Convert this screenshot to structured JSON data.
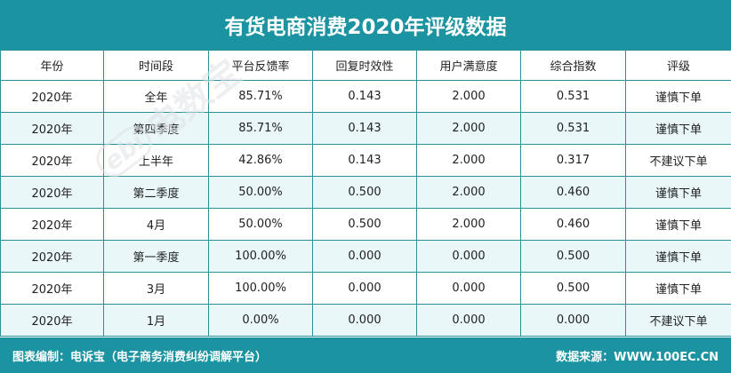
{
  "title": "有货电商消费2020年评级数据",
  "columns": [
    "年份",
    "时间段",
    "平台反馈率",
    "回复时效性",
    "用户满意度",
    "综合指数",
    "评级"
  ],
  "rows": [
    [
      "2020年",
      "全年",
      "85.71%",
      "0.143",
      "2.000",
      "0.531",
      "谨慎下单"
    ],
    [
      "2020年",
      "第四季度",
      "85.71%",
      "0.143",
      "2.000",
      "0.531",
      "谨慎下单"
    ],
    [
      "2020年",
      "上半年",
      "42.86%",
      "0.143",
      "2.000",
      "0.317",
      "不建议下单"
    ],
    [
      "2020年",
      "第二季度",
      "50.00%",
      "0.500",
      "2.000",
      "0.460",
      "谨慎下单"
    ],
    [
      "2020年",
      "4月",
      "50.00%",
      "0.500",
      "2.000",
      "0.460",
      "谨慎下单"
    ],
    [
      "2020年",
      "第一季度",
      "100.00%",
      "0.000",
      "0.000",
      "0.500",
      "谨慎下单"
    ],
    [
      "2020年",
      "3月",
      "100.00%",
      "0.000",
      "0.000",
      "0.500",
      "谨慎下单"
    ],
    [
      "2020年",
      "1月",
      "0.00%",
      "0.000",
      "0.000",
      "0.000",
      "不建议下单"
    ]
  ],
  "footer": {
    "left": "图表编制：电诉宝（电子商务消费纠纷调解平台）",
    "right": "数据来源：WWW.100EC.CN"
  },
  "watermark": {
    "logo": "ebi",
    "text": "电数宝"
  },
  "colors": {
    "header_bg": "#1c93a1",
    "row_alt": "#e9f7f8",
    "border": "#2a8f9b"
  }
}
